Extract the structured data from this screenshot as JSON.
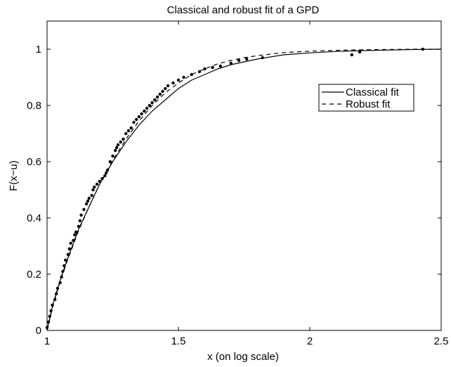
{
  "chart_data": {
    "type": "scatter",
    "title": "Classical and robust fit of a GPD",
    "xlabel": "x (on log scale)",
    "ylabel": "F(x−u)",
    "xlim": [
      1,
      2.5
    ],
    "ylim": [
      0,
      1.1
    ],
    "x_ticks": [
      1,
      1.5,
      2,
      2.5
    ],
    "x_tick_labels": [
      "1",
      "1.5",
      "2",
      "2.5"
    ],
    "y_ticks": [
      0,
      0.2,
      0.4,
      0.6,
      0.8,
      1
    ],
    "y_tick_labels": [
      "0",
      "0.2",
      "0.4",
      "0.6",
      "0.8",
      "1"
    ],
    "grid": false,
    "legend_position": "top-right",
    "series": [
      {
        "name": "Classical fit",
        "kind": "line",
        "style": "solid",
        "color": "#000000",
        "x": [
          1.0,
          1.02,
          1.05,
          1.08,
          1.12,
          1.16,
          1.2,
          1.25,
          1.3,
          1.35,
          1.4,
          1.45,
          1.5,
          1.55,
          1.6,
          1.65,
          1.7,
          1.75,
          1.8,
          1.9,
          2.0,
          2.1,
          2.2,
          2.3,
          2.4,
          2.5
        ],
        "y": [
          0.0,
          0.085,
          0.18,
          0.26,
          0.36,
          0.44,
          0.52,
          0.6,
          0.67,
          0.73,
          0.78,
          0.82,
          0.86,
          0.89,
          0.91,
          0.93,
          0.945,
          0.955,
          0.965,
          0.98,
          0.987,
          0.992,
          0.995,
          0.997,
          0.999,
          1.0
        ]
      },
      {
        "name": "Robust fit",
        "kind": "line",
        "style": "dashed",
        "color": "#000000",
        "x": [
          1.0,
          1.02,
          1.05,
          1.08,
          1.12,
          1.16,
          1.2,
          1.25,
          1.3,
          1.35,
          1.4,
          1.45,
          1.5,
          1.55,
          1.6,
          1.65,
          1.7,
          1.75,
          1.8,
          1.9,
          2.0,
          2.1,
          2.2,
          2.3,
          2.4,
          2.5
        ],
        "y": [
          0.0,
          0.08,
          0.175,
          0.255,
          0.355,
          0.44,
          0.52,
          0.605,
          0.68,
          0.745,
          0.8,
          0.845,
          0.88,
          0.91,
          0.93,
          0.948,
          0.96,
          0.97,
          0.977,
          0.988,
          0.993,
          0.996,
          0.998,
          0.999,
          1.0,
          1.0
        ]
      },
      {
        "name": "",
        "kind": "points",
        "color": "#000000",
        "x": [
          1.0,
          1.005,
          1.01,
          1.015,
          1.02,
          1.03,
          1.035,
          1.04,
          1.05,
          1.055,
          1.06,
          1.065,
          1.07,
          1.08,
          1.085,
          1.09,
          1.1,
          1.105,
          1.11,
          1.12,
          1.125,
          1.13,
          1.14,
          1.15,
          1.155,
          1.16,
          1.17,
          1.175,
          1.18,
          1.19,
          1.2,
          1.21,
          1.22,
          1.225,
          1.23,
          1.24,
          1.25,
          1.26,
          1.265,
          1.27,
          1.28,
          1.29,
          1.3,
          1.31,
          1.32,
          1.33,
          1.34,
          1.35,
          1.36,
          1.37,
          1.38,
          1.39,
          1.4,
          1.41,
          1.42,
          1.43,
          1.44,
          1.45,
          1.46,
          1.48,
          1.5,
          1.52,
          1.55,
          1.58,
          1.6,
          1.63,
          1.66,
          1.7,
          1.73,
          1.76,
          1.82,
          2.16,
          2.19,
          2.43
        ],
        "y": [
          0.01,
          0.03,
          0.05,
          0.07,
          0.09,
          0.11,
          0.13,
          0.15,
          0.17,
          0.19,
          0.21,
          0.23,
          0.25,
          0.27,
          0.29,
          0.31,
          0.32,
          0.34,
          0.35,
          0.37,
          0.39,
          0.41,
          0.43,
          0.45,
          0.46,
          0.47,
          0.48,
          0.5,
          0.51,
          0.52,
          0.53,
          0.54,
          0.55,
          0.56,
          0.57,
          0.6,
          0.62,
          0.64,
          0.65,
          0.66,
          0.67,
          0.68,
          0.7,
          0.71,
          0.72,
          0.74,
          0.75,
          0.76,
          0.77,
          0.78,
          0.79,
          0.8,
          0.81,
          0.82,
          0.83,
          0.84,
          0.85,
          0.86,
          0.87,
          0.88,
          0.89,
          0.9,
          0.91,
          0.92,
          0.93,
          0.935,
          0.94,
          0.95,
          0.96,
          0.965,
          0.97,
          0.98,
          0.99,
          1.0
        ]
      }
    ]
  }
}
